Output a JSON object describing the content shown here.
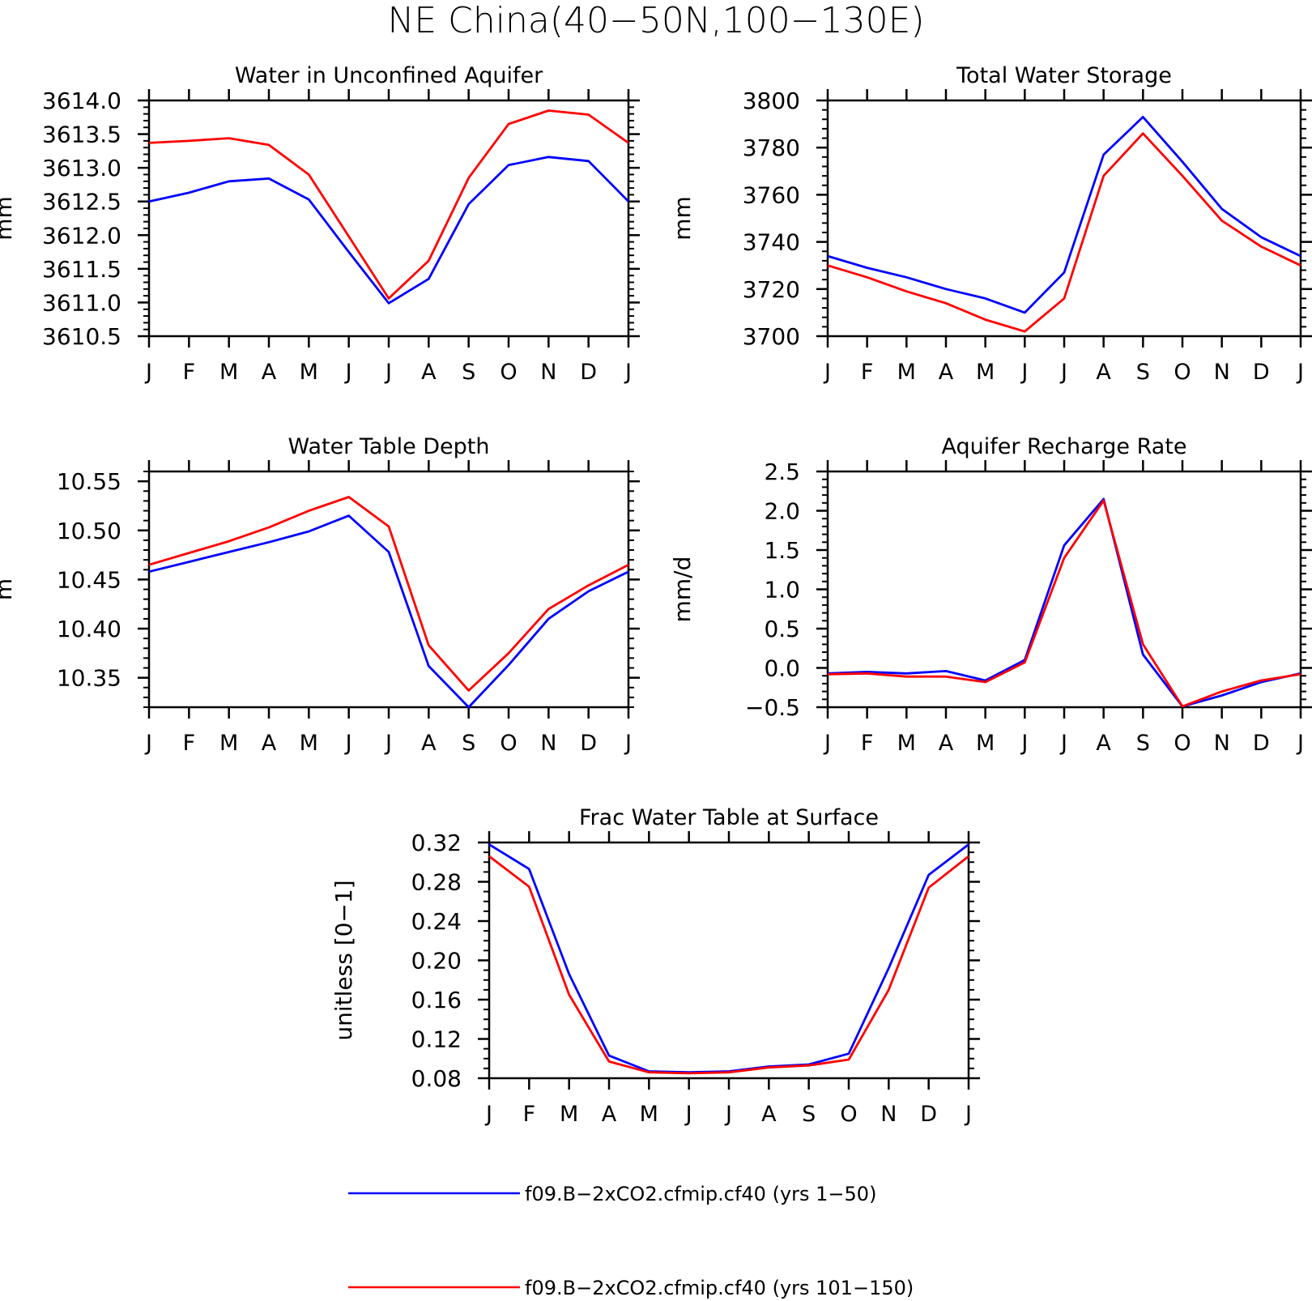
{
  "figure": {
    "title": "NE China(40−50N,100−130E)"
  },
  "months": [
    "J",
    "F",
    "M",
    "A",
    "M",
    "J",
    "J",
    "A",
    "S",
    "O",
    "N",
    "D",
    "J"
  ],
  "series": [
    {
      "name": "f09.B−2xCO2.cfmip.cf40 (yrs 1−50)",
      "color": "#0000ff"
    },
    {
      "name": "f09.B−2xCO2.cfmip.cf40 (yrs 101−150)",
      "color": "#ff0000"
    }
  ],
  "chart_data": [
    {
      "type": "line",
      "title": "Water in Unconfined Aquifer",
      "ylabel": "mm",
      "ylim": [
        3610.5,
        3614.0
      ],
      "yticks": [
        3610.5,
        3611.0,
        3611.5,
        3612.0,
        3612.5,
        3613.0,
        3613.5,
        3614.0
      ],
      "ytick_labels": [
        "3610.5",
        "3611.0",
        "3611.5",
        "3612.0",
        "3612.5",
        "3613.0",
        "3613.5",
        "3614.0"
      ],
      "minor_step": 0.1,
      "series": [
        {
          "values": [
            3612.5,
            3612.63,
            3612.8,
            3612.84,
            3612.53,
            3611.75,
            3610.99,
            3611.35,
            3612.46,
            3613.04,
            3613.16,
            3613.1,
            3612.5
          ]
        },
        {
          "values": [
            3613.37,
            3613.4,
            3613.44,
            3613.34,
            3612.9,
            3611.98,
            3611.06,
            3611.62,
            3612.85,
            3613.65,
            3613.85,
            3613.79,
            3613.37
          ]
        }
      ]
    },
    {
      "type": "line",
      "title": "Total Water Storage",
      "ylabel": "mm",
      "ylim": [
        3700,
        3800
      ],
      "yticks": [
        3700,
        3720,
        3740,
        3760,
        3780,
        3800
      ],
      "ytick_labels": [
        "3700",
        "3720",
        "3740",
        "3760",
        "3780",
        "3800"
      ],
      "minor_step": 4,
      "series": [
        {
          "values": [
            3734,
            3729,
            3725,
            3720,
            3716,
            3710,
            3727,
            3777,
            3793,
            3774,
            3754,
            3742,
            3734
          ]
        },
        {
          "values": [
            3730,
            3725,
            3719,
            3714,
            3707,
            3702,
            3716,
            3768,
            3786,
            3768,
            3749,
            3738,
            3730
          ]
        }
      ]
    },
    {
      "type": "line",
      "title": "Water Table Depth",
      "ylabel": "m",
      "ylim": [
        10.32,
        10.56
      ],
      "yticks": [
        10.35,
        10.4,
        10.45,
        10.5,
        10.55
      ],
      "ytick_labels": [
        "10.35",
        "10.40",
        "10.45",
        "10.50",
        "10.55"
      ],
      "minor_step": 0.01,
      "series": [
        {
          "values": [
            10.458,
            10.468,
            10.478,
            10.488,
            10.499,
            10.515,
            10.478,
            10.362,
            10.32,
            10.363,
            10.41,
            10.438,
            10.458
          ]
        },
        {
          "values": [
            10.465,
            10.477,
            10.489,
            10.503,
            10.52,
            10.534,
            10.504,
            10.383,
            10.337,
            10.375,
            10.42,
            10.444,
            10.465
          ]
        }
      ]
    },
    {
      "type": "line",
      "title": "Aquifer Recharge Rate",
      "ylabel": "mm/d",
      "ylim": [
        -0.5,
        2.5
      ],
      "yticks": [
        -0.5,
        0.0,
        0.5,
        1.0,
        1.5,
        2.0,
        2.5
      ],
      "ytick_labels": [
        "−0.5",
        "0.0",
        "0.5",
        "1.0",
        "1.5",
        "2.0",
        "2.5"
      ],
      "minor_step": 0.1,
      "series": [
        {
          "values": [
            -0.07,
            -0.05,
            -0.07,
            -0.04,
            -0.16,
            0.1,
            1.56,
            2.15,
            0.17,
            -0.49,
            -0.35,
            -0.18,
            -0.07
          ]
        },
        {
          "values": [
            -0.08,
            -0.07,
            -0.11,
            -0.11,
            -0.18,
            0.07,
            1.4,
            2.13,
            0.3,
            -0.49,
            -0.3,
            -0.16,
            -0.08
          ]
        }
      ]
    },
    {
      "type": "line",
      "title": "Frac Water Table at Surface",
      "ylabel": "unitless [0−1]",
      "ylim": [
        0.08,
        0.32
      ],
      "yticks": [
        0.08,
        0.12,
        0.16,
        0.2,
        0.24,
        0.28,
        0.32
      ],
      "ytick_labels": [
        "0.08",
        "0.12",
        "0.16",
        "0.20",
        "0.24",
        "0.28",
        "0.32"
      ],
      "minor_step": 0.01,
      "series": [
        {
          "values": [
            0.318,
            0.293,
            0.186,
            0.103,
            0.087,
            0.086,
            0.087,
            0.092,
            0.094,
            0.105,
            0.192,
            0.287,
            0.318
          ]
        },
        {
          "values": [
            0.306,
            0.275,
            0.165,
            0.097,
            0.086,
            0.085,
            0.086,
            0.091,
            0.093,
            0.099,
            0.17,
            0.274,
            0.306
          ]
        }
      ]
    }
  ]
}
